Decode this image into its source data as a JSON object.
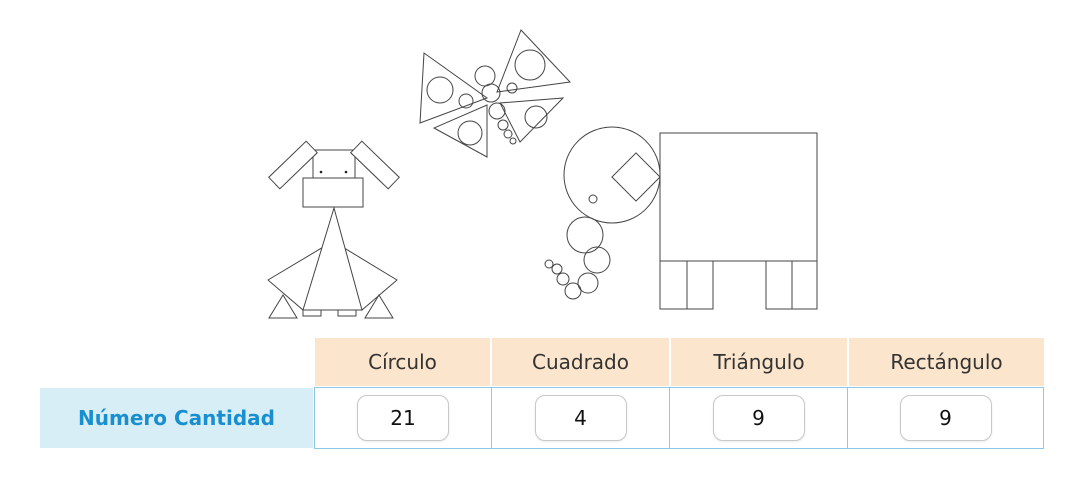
{
  "table": {
    "headers": [
      "Círculo",
      "Cuadrado",
      "Triángulo",
      "Rectángulo"
    ],
    "row_label": "Número Cantidad",
    "values": [
      "21",
      "4",
      "9",
      "9"
    ]
  },
  "figure": {
    "drawings": [
      "dog",
      "butterfly",
      "elephant"
    ],
    "line_color": "#444444"
  }
}
